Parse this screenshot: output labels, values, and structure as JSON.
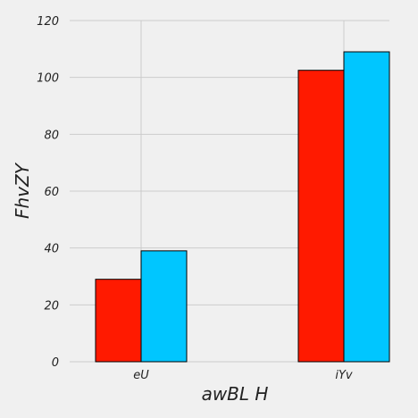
{
  "chart_data": {
    "type": "bar",
    "categories": [
      "eU",
      "iYv"
    ],
    "series": [
      {
        "values": [
          29,
          102.5
        ],
        "color": "#ff1a00"
      },
      {
        "values": [
          39,
          109
        ],
        "color": "#00c6ff"
      }
    ],
    "xlabel": "awBL H",
    "ylabel": "FhvZY",
    "ylim": [
      0,
      120
    ],
    "yticks": [
      0,
      20,
      40,
      60,
      80,
      100,
      120
    ],
    "grid": true,
    "background": "#f0f0f0"
  }
}
